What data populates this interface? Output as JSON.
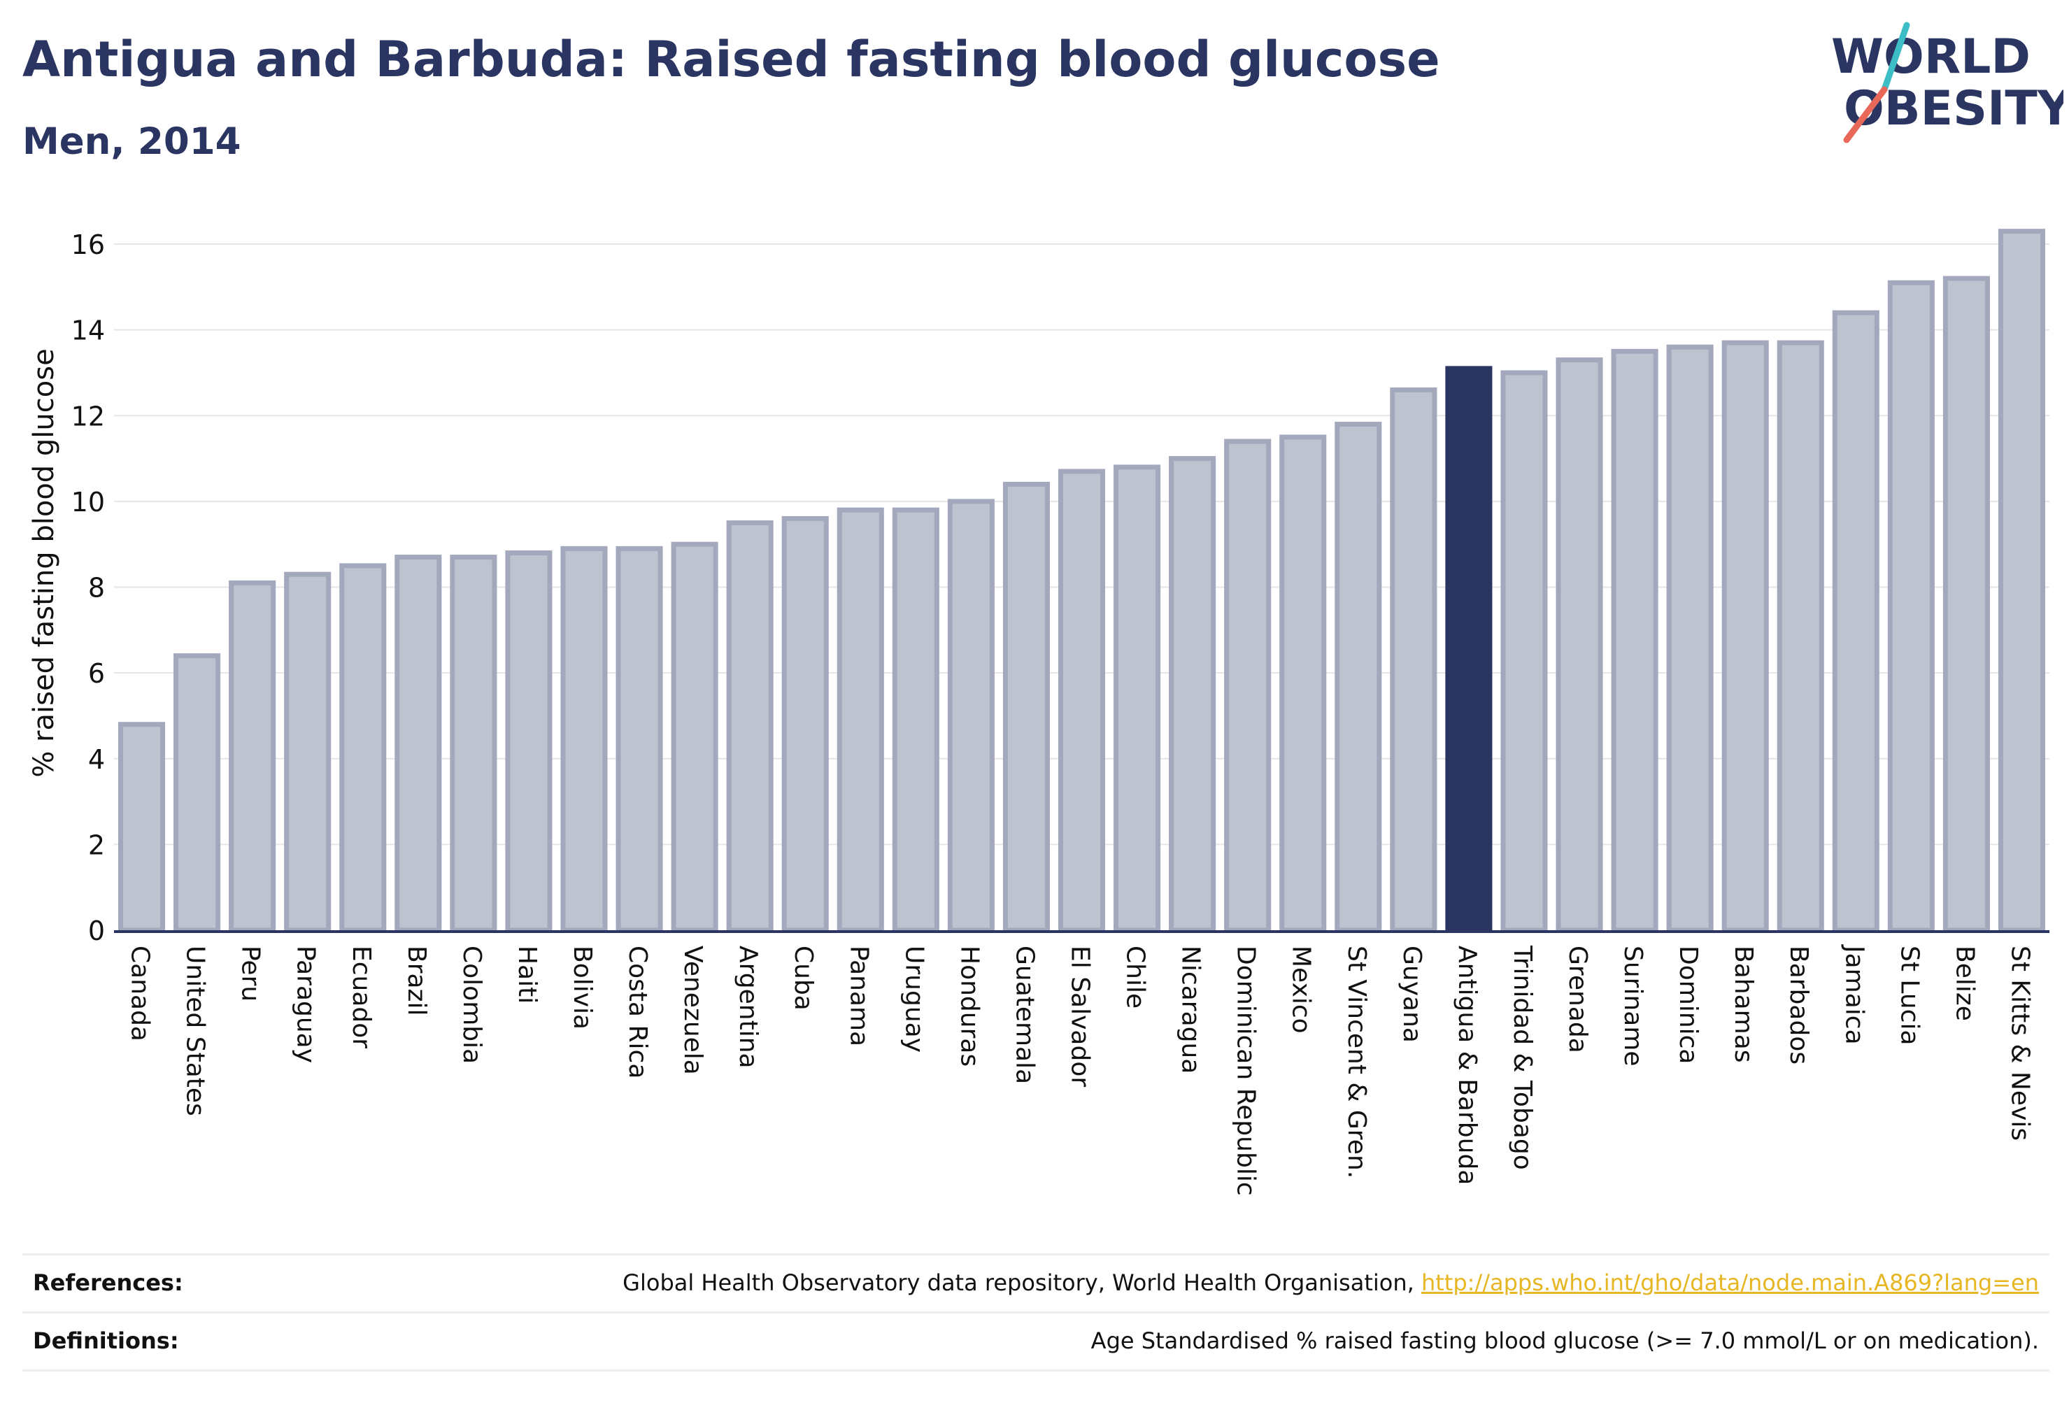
{
  "header": {
    "title": "Antigua and Barbuda: Raised fasting blood glucose",
    "subtitle": "Men, 2014"
  },
  "logo": {
    "line1": "WORLD",
    "line2": "OBESITY",
    "colors": {
      "text": "#2a3561",
      "slash_top": "#3dbdc5",
      "slash_bottom": "#e8685a"
    }
  },
  "chart_data": {
    "type": "bar",
    "title": "Antigua and Barbuda: Raised fasting blood glucose",
    "subtitle": "Men, 2014",
    "ylabel": "% raised fasting blood glucose",
    "xlabel": "",
    "ylim": [
      0,
      16.8
    ],
    "yticks": [
      0,
      2,
      4,
      6,
      8,
      10,
      12,
      14,
      16
    ],
    "grid": true,
    "highlight": "Antigua & Barbuda",
    "colors": {
      "bar_fill": "#bfc2cf",
      "bar_stroke": "#a4a8bd",
      "highlight_fill": "#2a3561",
      "grid": "#e6e6e6",
      "axis": "#2a3561"
    },
    "categories": [
      "Canada",
      "United States",
      "Peru",
      "Paraguay",
      "Ecuador",
      "Brazil",
      "Colombia",
      "Haiti",
      "Bolivia",
      "Costa Rica",
      "Venezuela",
      "Argentina",
      "Cuba",
      "Panama",
      "Uruguay",
      "Honduras",
      "Guatemala",
      "El Salvador",
      "Chile",
      "Nicaragua",
      "Dominican Republic",
      "Mexico",
      "St Vincent & Gren.",
      "Guyana",
      "Antigua & Barbuda",
      "Trinidad & Tobago",
      "Grenada",
      "Suriname",
      "Dominica",
      "Bahamas",
      "Barbados",
      "Jamaica",
      "St Lucia",
      "Belize",
      "St Kitts & Nevis"
    ],
    "values": [
      4.8,
      6.4,
      8.1,
      8.3,
      8.5,
      8.7,
      8.7,
      8.8,
      8.9,
      8.9,
      9.0,
      9.5,
      9.6,
      9.8,
      9.8,
      10.0,
      10.4,
      10.7,
      10.8,
      11.0,
      11.4,
      11.5,
      11.8,
      12.6,
      13.1,
      13.0,
      13.3,
      13.5,
      13.6,
      13.7,
      13.7,
      14.4,
      15.1,
      15.2,
      16.3
    ]
  },
  "footer": {
    "references_label": "References:",
    "references_text": "Global Health Observatory data repository, World Health Organisation, ",
    "references_link": "http://apps.who.int/gho/data/node.main.A869?lang=en",
    "definitions_label": "Definitions:",
    "definitions_text": "Age Standardised % raised fasting blood glucose (>= 7.0 mmol/L or on medication)."
  }
}
